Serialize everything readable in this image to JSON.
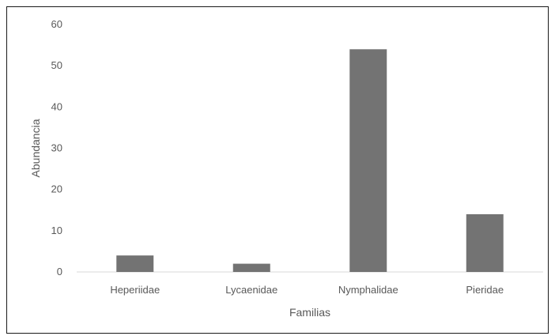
{
  "chart_data": {
    "type": "bar",
    "categories": [
      "Heperiidae",
      "Lycaenidae",
      "Nymphalidae",
      "Pieridae"
    ],
    "values": [
      4,
      2,
      54,
      14
    ],
    "title": "",
    "xlabel": "Familias",
    "ylabel": "Abundancia",
    "ylim": [
      0,
      60
    ],
    "yticks": [
      "0",
      "10",
      "20",
      "30",
      "40",
      "50",
      "60"
    ],
    "grid": false,
    "legend": "none",
    "bar_color": "#737373",
    "axis_color": "#d9d9d9"
  }
}
